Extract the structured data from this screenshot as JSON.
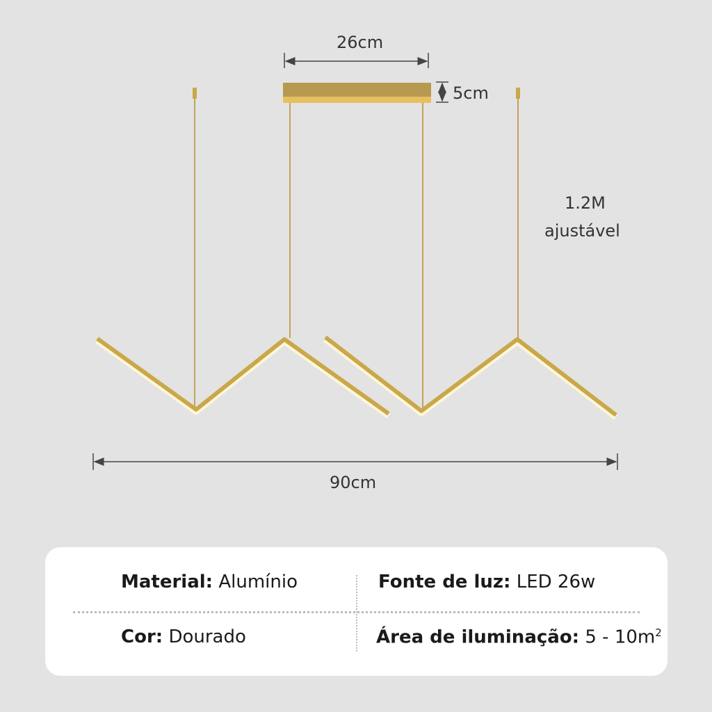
{
  "dimensions": {
    "canopy_width": "26cm",
    "canopy_height": "5cm",
    "cable_length_line1": "1.2M",
    "cable_length_line2": "ajustável",
    "total_width": "90cm"
  },
  "colors": {
    "background": "#e3e3e3",
    "gold": "#c9a84a",
    "card": "#ffffff"
  },
  "specs": {
    "material_label": "Material:",
    "material_value": "Alumínio",
    "light_label": "Fonte de luz:",
    "light_value": "LED 26w",
    "color_label": "Cor:",
    "color_value": "Dourado",
    "area_label": "Área de iluminação:",
    "area_value": "5 - 10m",
    "area_unit_sup": "2"
  }
}
